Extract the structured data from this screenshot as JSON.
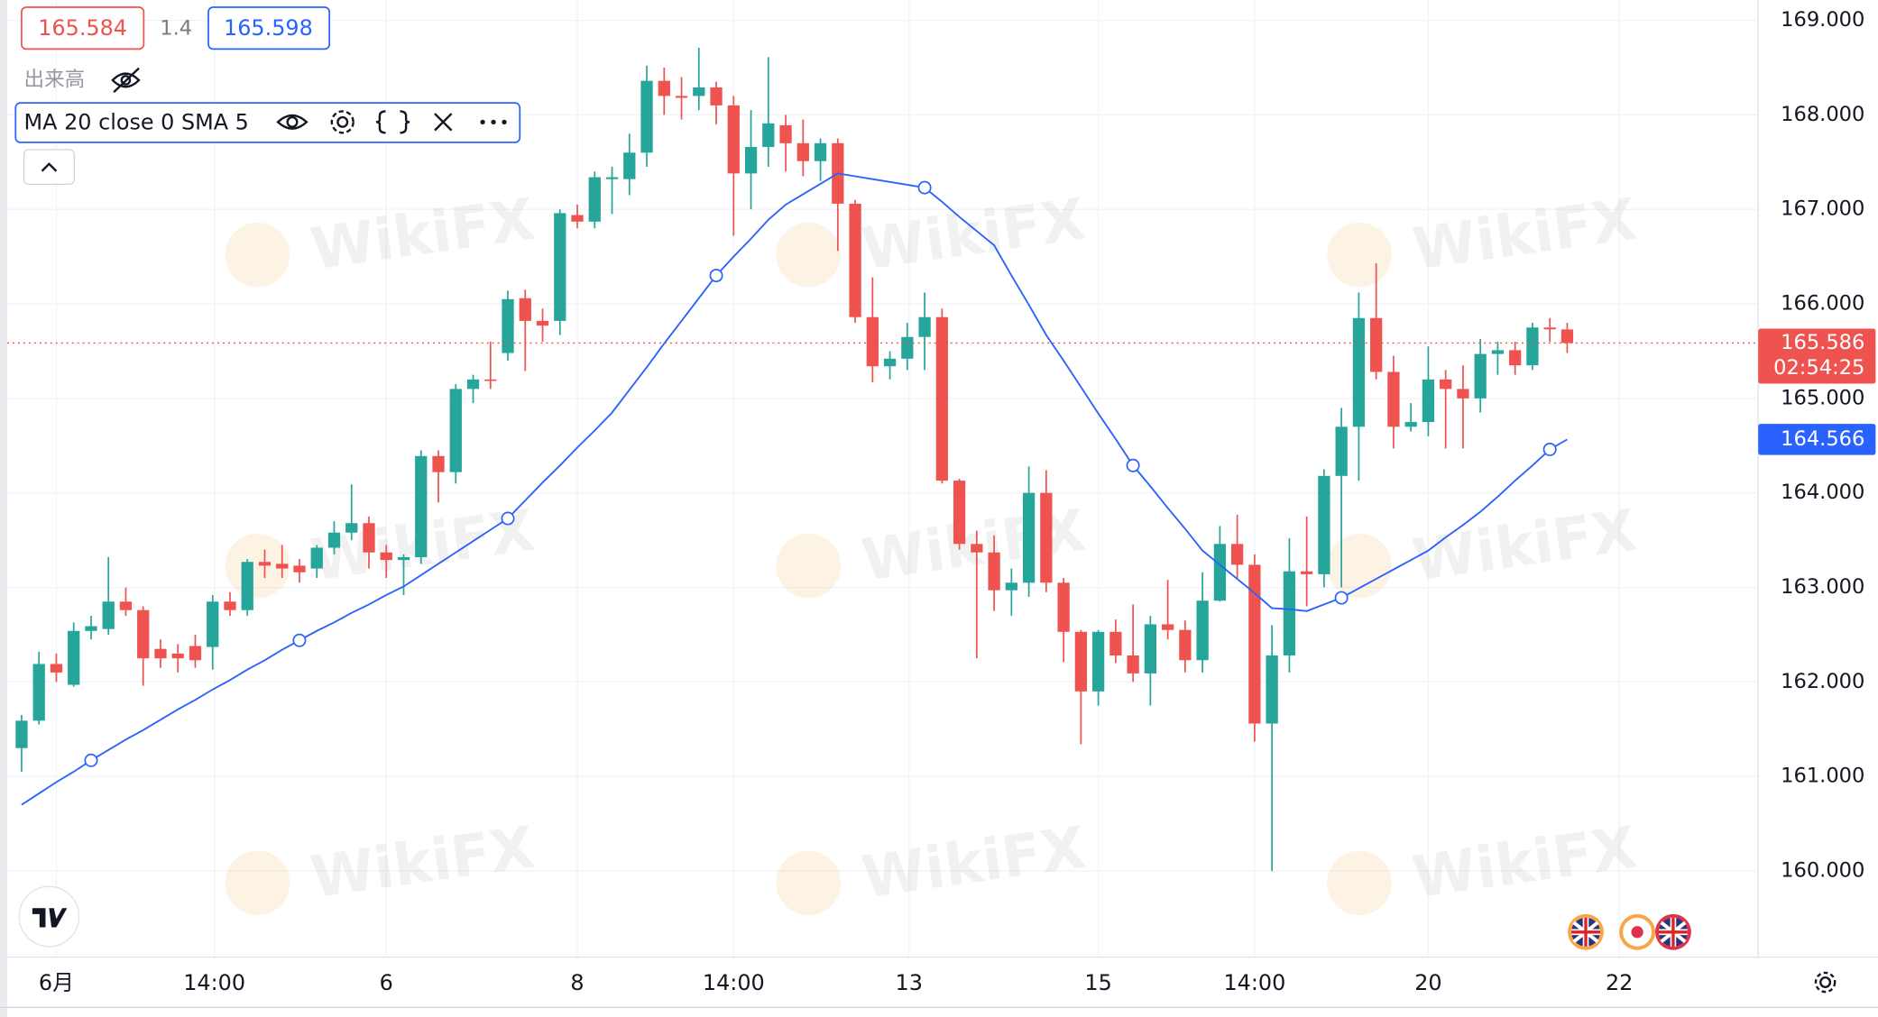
{
  "header": {
    "bid": "165.584",
    "spread": "1.4",
    "ask": "165.598",
    "volume_label": "出来高",
    "indicator": "MA 20 close 0 SMA 5"
  },
  "watermark": "WikiFX",
  "chart_data": {
    "type": "candlestick",
    "up_color": "#26a69a",
    "down_color": "#ef5350",
    "open": [
      161.3,
      161.59,
      162.19,
      161.97,
      162.54,
      162.56,
      162.85,
      162.76,
      162.35,
      162.3,
      162.38,
      162.37,
      162.85,
      162.76,
      163.27,
      163.25,
      163.23,
      163.2,
      163.42,
      163.58,
      163.68,
      163.37,
      163.29,
      163.32,
      164.39,
      164.22,
      165.1,
      165.2,
      165.48,
      166.06,
      165.82,
      165.82,
      166.94,
      166.87,
      167.32,
      167.32,
      167.6,
      168.36,
      168.2,
      168.2,
      168.29,
      168.1,
      167.38,
      167.66,
      167.89,
      167.7,
      167.51,
      167.7,
      167.06,
      165.86,
      165.34,
      165.42,
      165.65,
      165.86,
      164.13,
      163.46,
      163.37,
      162.97,
      163.05,
      164.0,
      163.05,
      162.53,
      161.9,
      162.53,
      162.28,
      162.09,
      162.61,
      162.55,
      162.23,
      162.86,
      163.46,
      163.24,
      161.56,
      162.28,
      163.17,
      163.14,
      164.18,
      164.7,
      165.85,
      165.28,
      164.7,
      164.75,
      165.2,
      165.1,
      165.0,
      165.47,
      165.51,
      165.35,
      165.75,
      165.73
    ],
    "high": [
      161.65,
      162.32,
      162.3,
      162.63,
      162.7,
      163.32,
      163.0,
      162.8,
      162.45,
      162.4,
      162.5,
      162.92,
      162.95,
      163.3,
      163.4,
      163.45,
      163.3,
      163.45,
      163.7,
      164.09,
      163.75,
      163.45,
      163.35,
      164.45,
      164.45,
      165.15,
      165.25,
      165.6,
      166.14,
      166.15,
      165.95,
      167.0,
      167.05,
      167.4,
      167.45,
      167.8,
      168.52,
      168.5,
      168.4,
      168.71,
      168.35,
      168.2,
      168.05,
      168.61,
      168.0,
      167.95,
      167.75,
      167.75,
      167.1,
      166.28,
      165.5,
      165.8,
      166.12,
      165.95,
      164.15,
      163.6,
      163.55,
      163.2,
      164.28,
      164.24,
      163.1,
      162.55,
      162.55,
      162.66,
      162.82,
      162.7,
      163.08,
      162.65,
      163.16,
      163.65,
      163.77,
      163.35,
      162.6,
      163.52,
      163.75,
      164.25,
      164.9,
      166.12,
      166.43,
      165.45,
      164.95,
      165.55,
      165.3,
      165.35,
      165.63,
      165.6,
      165.6,
      165.8,
      165.85,
      165.8
    ],
    "low": [
      161.05,
      161.55,
      162.0,
      161.95,
      162.45,
      162.5,
      162.7,
      161.96,
      162.15,
      162.1,
      162.15,
      162.13,
      162.7,
      162.7,
      163.1,
      163.1,
      163.05,
      163.1,
      163.35,
      163.5,
      163.2,
      163.1,
      162.92,
      163.25,
      163.9,
      164.1,
      164.95,
      165.1,
      165.4,
      165.29,
      165.6,
      165.67,
      166.8,
      166.8,
      166.95,
      167.15,
      167.45,
      168.0,
      167.95,
      168.05,
      167.9,
      166.72,
      167.0,
      167.45,
      167.4,
      167.35,
      167.3,
      166.56,
      165.8,
      165.17,
      165.2,
      165.3,
      165.3,
      164.1,
      163.4,
      162.25,
      162.75,
      162.7,
      162.9,
      162.95,
      162.21,
      161.34,
      161.75,
      162.2,
      162.0,
      161.75,
      162.45,
      162.1,
      162.1,
      162.85,
      163.1,
      161.37,
      160.0,
      162.1,
      162.8,
      163.0,
      163.0,
      164.13,
      165.2,
      164.47,
      164.65,
      164.6,
      164.47,
      164.47,
      164.85,
      165.25,
      165.25,
      165.3,
      165.6,
      165.48
    ],
    "close": [
      161.59,
      162.19,
      162.1,
      162.54,
      162.59,
      162.85,
      162.76,
      162.25,
      162.25,
      162.25,
      162.23,
      162.85,
      162.76,
      163.27,
      163.23,
      163.2,
      163.16,
      163.42,
      163.58,
      163.68,
      163.37,
      163.29,
      163.32,
      164.39,
      164.22,
      165.1,
      165.2,
      165.19,
      166.05,
      165.82,
      165.77,
      166.96,
      166.87,
      167.34,
      167.34,
      167.6,
      168.36,
      168.2,
      168.18,
      168.29,
      168.1,
      167.38,
      167.66,
      167.91,
      167.7,
      167.51,
      167.7,
      167.06,
      165.86,
      165.34,
      165.42,
      165.65,
      165.86,
      164.13,
      163.46,
      163.37,
      162.97,
      163.05,
      164.0,
      163.05,
      162.53,
      161.9,
      162.53,
      162.28,
      162.09,
      162.61,
      162.55,
      162.23,
      162.86,
      163.46,
      163.24,
      161.56,
      162.28,
      163.17,
      163.14,
      164.18,
      164.7,
      165.85,
      165.28,
      164.7,
      164.75,
      165.2,
      165.1,
      165.0,
      165.47,
      165.51,
      165.35,
      165.75,
      165.73,
      165.586
    ],
    "ma": {
      "color": "#2962ff",
      "values": [
        160.7,
        160.82,
        160.94,
        161.05,
        161.17,
        161.28,
        161.39,
        161.49,
        161.6,
        161.71,
        161.81,
        161.92,
        162.02,
        162.13,
        162.23,
        162.34,
        162.44,
        162.54,
        162.63,
        162.73,
        162.82,
        162.92,
        163.01,
        163.13,
        163.25,
        163.37,
        163.49,
        163.61,
        163.73,
        163.92,
        164.11,
        164.29,
        164.48,
        164.66,
        164.85,
        165.09,
        165.33,
        165.58,
        165.82,
        166.06,
        166.3,
        166.5,
        166.69,
        166.89,
        167.05,
        167.16,
        167.27,
        167.38,
        167.35,
        167.32,
        167.29,
        167.26,
        167.23,
        167.08,
        166.92,
        166.77,
        166.62,
        166.3,
        165.99,
        165.67,
        165.4,
        165.12,
        164.84,
        164.57,
        164.29,
        164.07,
        163.84,
        163.62,
        163.39,
        163.24,
        163.09,
        162.94,
        162.78,
        162.77,
        162.75,
        162.82,
        162.89,
        162.99,
        163.09,
        163.19,
        163.29,
        163.39,
        163.53,
        163.66,
        163.8,
        163.96,
        164.13,
        164.29,
        164.46,
        164.566
      ]
    },
    "countdown": "02:54:25",
    "ylim": [
      159.088,
      169.215
    ],
    "yticks": [
      {
        "value": 160,
        "label": "160.000"
      },
      {
        "value": 161,
        "label": "161.000"
      },
      {
        "value": 162,
        "label": "162.000"
      },
      {
        "value": 163,
        "label": "163.000"
      },
      {
        "value": 164,
        "label": "164.000"
      },
      {
        "value": 165,
        "label": "165.000"
      },
      {
        "value": 166,
        "label": "166.000"
      },
      {
        "value": 167,
        "label": "167.000"
      },
      {
        "value": 168,
        "label": "168.000"
      },
      {
        "value": 169,
        "label": "169.000"
      }
    ],
    "xlim": [
      -0.83,
      100
    ],
    "xticks": [
      {
        "value": 2,
        "label": "6月"
      },
      {
        "value": 11.1,
        "label": "14:00"
      },
      {
        "value": 21,
        "label": "6"
      },
      {
        "value": 32,
        "label": "8"
      },
      {
        "value": 41,
        "label": "14:00"
      },
      {
        "value": 51.1,
        "label": "13"
      },
      {
        "value": 62,
        "label": "15"
      },
      {
        "value": 71,
        "label": "14:00"
      },
      {
        "value": 81,
        "label": "20"
      },
      {
        "value": 92,
        "label": "22"
      }
    ],
    "grid": true
  }
}
